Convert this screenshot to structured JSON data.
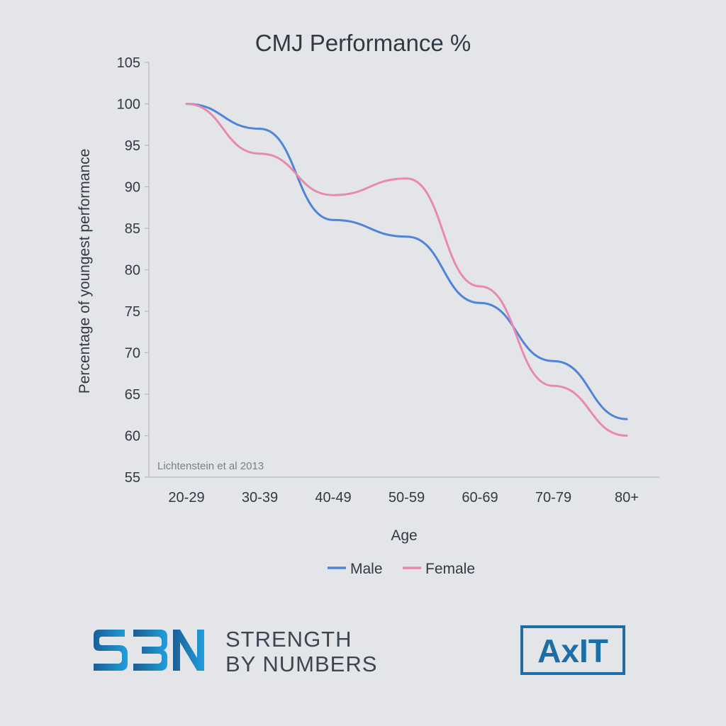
{
  "chart_data": {
    "type": "line",
    "title": "CMJ Performance %",
    "xlabel": "Age",
    "ylabel": "Percentage of youngest performance",
    "categories": [
      "20-29",
      "30-39",
      "40-49",
      "50-59",
      "60-69",
      "70-79",
      "80+"
    ],
    "series": [
      {
        "name": "Male",
        "values": [
          100,
          97,
          86,
          84,
          76,
          69,
          62
        ],
        "color": "#4f84d6"
      },
      {
        "name": "Female",
        "values": [
          100,
          94,
          89,
          91,
          78,
          66,
          60
        ],
        "color": "#e88aae"
      }
    ],
    "ylim": [
      55,
      105
    ],
    "yticks": [
      55,
      60,
      65,
      70,
      75,
      80,
      85,
      90,
      95,
      100,
      105
    ],
    "grid": false,
    "legend_position": "bottom",
    "smooth": true,
    "annotation": "Lichtenstein et al 2013"
  },
  "branding": {
    "sbn_logo_text": "SBN",
    "sbn_line1": "STRENGTH",
    "sbn_line2": "BY NUMBERS",
    "axit_logo_text": "AxIT",
    "sbn_color": "#1f6fa8",
    "axit_color": "#1c6fa6"
  }
}
